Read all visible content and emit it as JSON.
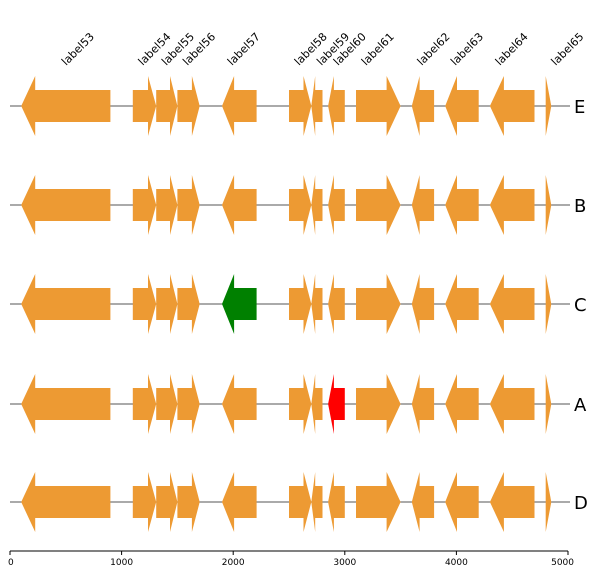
{
  "chart_data": {
    "type": "gene-arrow-map",
    "x_range": [
      0,
      5000
    ],
    "x_ticks": [
      0,
      1000,
      2000,
      3000,
      4000,
      5000
    ],
    "gene_labels": [
      "label53",
      "label54",
      "label55",
      "label56",
      "label57",
      "label58",
      "label59",
      "label60",
      "label61",
      "label62",
      "label63",
      "label64",
      "label65"
    ],
    "genes": [
      {
        "start": 100,
        "end": 900,
        "strand": -1
      },
      {
        "start": 1100,
        "end": 1310,
        "strand": 1
      },
      {
        "start": 1310,
        "end": 1500,
        "strand": 1
      },
      {
        "start": 1500,
        "end": 1700,
        "strand": 1
      },
      {
        "start": 1900,
        "end": 2210,
        "strand": -1
      },
      {
        "start": 2500,
        "end": 2700,
        "strand": 1
      },
      {
        "start": 2700,
        "end": 2800,
        "strand": -1
      },
      {
        "start": 2850,
        "end": 3000,
        "strand": -1
      },
      {
        "start": 3100,
        "end": 3500,
        "strand": 1
      },
      {
        "start": 3600,
        "end": 3800,
        "strand": -1
      },
      {
        "start": 3900,
        "end": 4200,
        "strand": -1
      },
      {
        "start": 4300,
        "end": 4700,
        "strand": -1
      },
      {
        "start": 4800,
        "end": 4850,
        "strand": 1
      }
    ],
    "tracks": [
      {
        "name": "E",
        "highlights": []
      },
      {
        "name": "B",
        "highlights": []
      },
      {
        "name": "C",
        "highlights": [
          {
            "gene_index": 4,
            "color": "#008000"
          }
        ]
      },
      {
        "name": "A",
        "highlights": [
          {
            "gene_index": 7,
            "color": "#ff0000"
          }
        ]
      },
      {
        "name": "D",
        "highlights": []
      }
    ],
    "colors": {
      "default_gene": "#ED9A33",
      "backbone": "#555555",
      "axis": "#000000"
    }
  }
}
